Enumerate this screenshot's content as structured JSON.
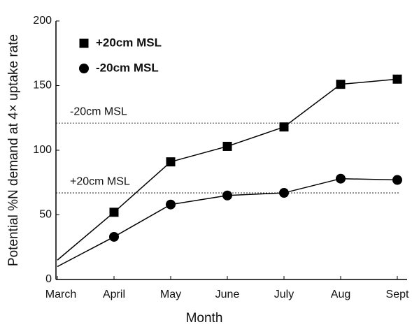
{
  "chart_data": {
    "type": "line",
    "y_label": "Potential %N demand at 4× uptake rate",
    "x_label": "Month",
    "categories": [
      "March",
      "April",
      "May",
      "June",
      "July",
      "Aug",
      "Sept"
    ],
    "series": [
      {
        "name": "+20cm MSL",
        "marker": "square",
        "color": "#000000",
        "values": [
          15,
          52,
          91,
          103,
          118,
          151,
          155
        ]
      },
      {
        "name": "-20cm MSL",
        "marker": "circle",
        "color": "#000000",
        "values": [
          10,
          33,
          58,
          65,
          67,
          78,
          77
        ]
      }
    ],
    "reference_lines": [
      {
        "value": 121,
        "label": "-20cm MSL"
      },
      {
        "value": 67,
        "label": "+20cm MSL"
      }
    ],
    "ylim": [
      0,
      200
    ],
    "yticks": [
      0,
      50,
      100,
      150,
      200
    ],
    "legend": "upper left"
  }
}
